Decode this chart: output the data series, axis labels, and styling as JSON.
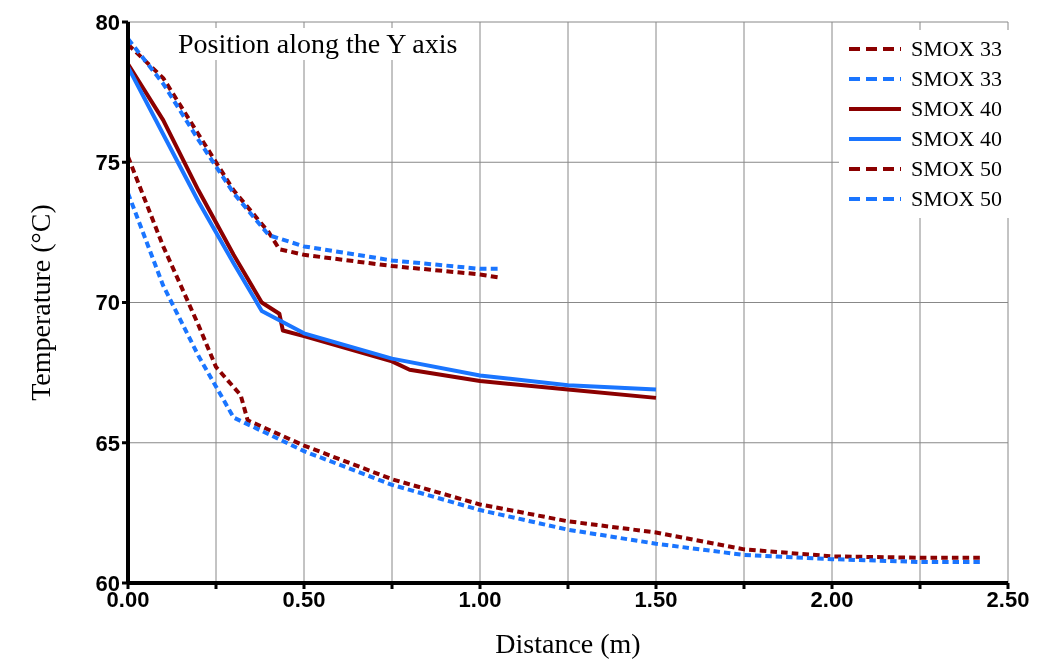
{
  "chart_data": {
    "type": "line",
    "title": "Position along the Y axis",
    "xlabel": "Distance (m)",
    "ylabel": "Temperature (°C)",
    "xlim": [
      0,
      2.5
    ],
    "ylim": [
      60,
      80
    ],
    "xticks": [
      {
        "value": 0,
        "label": "0.00"
      },
      {
        "value": 0.25,
        "label": null
      },
      {
        "value": 0.5,
        "label": "0.50"
      },
      {
        "value": 0.75,
        "label": null
      },
      {
        "value": 1,
        "label": "1.00"
      },
      {
        "value": 1.25,
        "label": null
      },
      {
        "value": 1.5,
        "label": "1.50"
      },
      {
        "value": 1.75,
        "label": null
      },
      {
        "value": 2,
        "label": "2.00"
      },
      {
        "value": 2.25,
        "label": null
      },
      {
        "value": 2.5,
        "label": "2.50"
      }
    ],
    "yticks": [
      60,
      65,
      70,
      75,
      80
    ],
    "grid": true,
    "legend": "top right",
    "marker": "none",
    "series": [
      {
        "name": "SMOX 33",
        "color": "#8b0000",
        "line_style": "dashed",
        "x": [
          0,
          0.1,
          0.2,
          0.3,
          0.4,
          0.43,
          0.5,
          0.75,
          1.0,
          1.05
        ],
        "values": [
          79.2,
          78,
          76,
          74,
          72.5,
          71.9,
          71.7,
          71.3,
          71.0,
          70.9
        ]
      },
      {
        "name": "SMOX 33",
        "color": "#1a75ff",
        "line_style": "dashed",
        "x": [
          0,
          0.1,
          0.2,
          0.3,
          0.4,
          0.5,
          0.75,
          1.0,
          1.05
        ],
        "values": [
          79.4,
          77.8,
          75.8,
          73.9,
          72.4,
          72.0,
          71.5,
          71.2,
          71.2
        ]
      },
      {
        "name": "SMOX 40",
        "color": "#8b0000",
        "line_style": "solid",
        "x": [
          0,
          0.1,
          0.2,
          0.3,
          0.38,
          0.43,
          0.44,
          0.5,
          0.75,
          0.8,
          1.0,
          1.25,
          1.5
        ],
        "values": [
          78.5,
          76.5,
          74,
          71.7,
          70,
          69.6,
          69,
          68.8,
          67.9,
          67.6,
          67.2,
          66.9,
          66.6
        ]
      },
      {
        "name": "SMOX 40",
        "color": "#1a75ff",
        "line_style": "solid",
        "x": [
          0,
          0.1,
          0.2,
          0.3,
          0.38,
          0.5,
          0.75,
          1.0,
          1.25,
          1.5
        ],
        "values": [
          78.4,
          76,
          73.6,
          71.4,
          69.7,
          68.9,
          68,
          67.4,
          67.05,
          66.9
        ]
      },
      {
        "name": "SMOX 50",
        "color": "#8b0000",
        "line_style": "dashed",
        "x": [
          0,
          0.1,
          0.2,
          0.25,
          0.32,
          0.34,
          0.5,
          0.75,
          1.0,
          1.25,
          1.5,
          1.75,
          2.0,
          2.25,
          2.42
        ],
        "values": [
          75.2,
          72,
          69.2,
          67.7,
          66.7,
          65.8,
          64.9,
          63.7,
          62.8,
          62.2,
          61.8,
          61.2,
          60.95,
          60.9,
          60.9
        ]
      },
      {
        "name": "SMOX 50",
        "color": "#1a75ff",
        "line_style": "dashed",
        "x": [
          0,
          0.1,
          0.2,
          0.3,
          0.5,
          0.75,
          1.0,
          1.25,
          1.5,
          1.75,
          2.0,
          2.25,
          2.42
        ],
        "values": [
          73.9,
          70.6,
          68.1,
          65.9,
          64.7,
          63.5,
          62.6,
          61.9,
          61.4,
          61.0,
          60.85,
          60.75,
          60.75
        ]
      }
    ]
  }
}
